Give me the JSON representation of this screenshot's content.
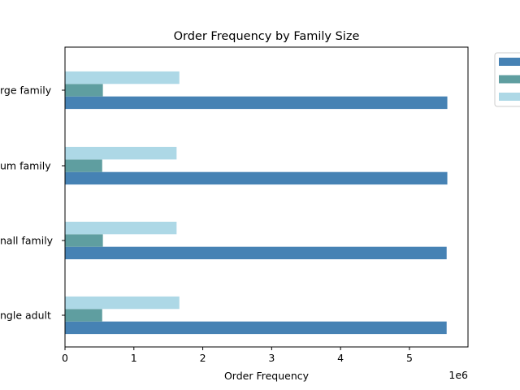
{
  "chart_data": {
    "type": "bar",
    "orientation": "horizontal",
    "title": "Order Frequency by Family Size",
    "xlabel": "Order Frequency",
    "ylabel": "",
    "x_offset_label": "1e6",
    "xlim": [
      0,
      5.85
    ],
    "x_ticks": [
      "0",
      "1",
      "2",
      "3",
      "4",
      "5"
    ],
    "categories": [
      "single adult",
      "small family",
      "medium family",
      "large family"
    ],
    "categories_visible": [
      "ngle adult",
      "nall family",
      "um family",
      "rge family"
    ],
    "series": [
      {
        "color": "#4682b4",
        "values": [
          5.54,
          5.54,
          5.55,
          5.55
        ]
      },
      {
        "color": "#5f9ea0",
        "values": [
          0.54,
          0.55,
          0.54,
          0.55
        ]
      },
      {
        "color": "#add8e6",
        "values": [
          1.66,
          1.62,
          1.62,
          1.66
        ]
      }
    ],
    "legend": {
      "placement": "outside upper right"
    },
    "grid": false
  }
}
